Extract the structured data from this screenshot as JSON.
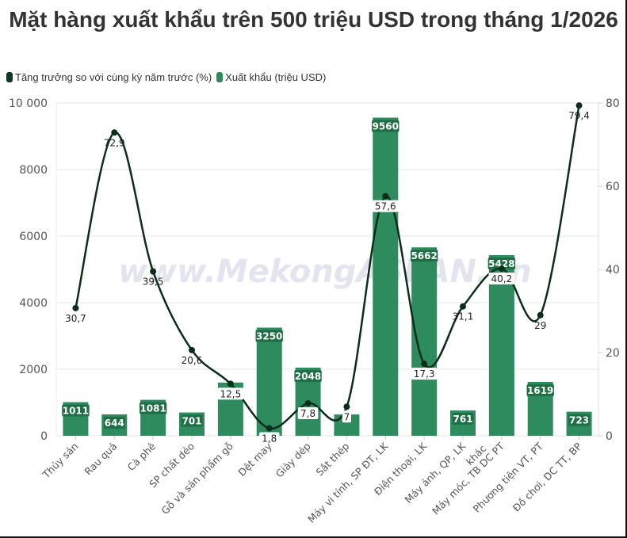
{
  "title": "Mặt hàng xuất khẩu trên 500 triệu USD trong tháng 1/2026",
  "watermark": "www.MekongASEAN.vn",
  "legend": [
    {
      "label": "Tăng trưởng so với cùng kỳ năm trước (%)",
      "color": "#0b3a1e"
    },
    {
      "label": "Xuất khẩu (triệu USD)",
      "color": "#2e8b57"
    }
  ],
  "colors": {
    "bar": "#2e8b5e",
    "line": "#0b2e1a",
    "grid": "#e6e6e6"
  },
  "chart_data": {
    "type": "bar",
    "title": "Mặt hàng xuất khẩu trên 500 triệu USD trong tháng 1/2026",
    "xlabel": "",
    "ylabel": "",
    "categories": [
      "Thủy sản",
      "Rau quả",
      "Cà phê",
      "SP chất dẻo",
      "Gỗ và sản phẩm gỗ",
      "Dệt may",
      "Giày dép",
      "Sắt thép",
      "Máy vi tính, SP ĐT, LK",
      "Điện thoại, LK",
      "Máy ảnh, QP, LK",
      "Máy móc, TB DC PT khác",
      "Phương tiện VT, PT",
      "Đồ chơi, DC TT, BP"
    ],
    "series": [
      {
        "name": "Xuất khẩu (triệu USD)",
        "type": "bar",
        "axis": "left",
        "values": [
          1011,
          644,
          1081,
          701,
          1600,
          3250,
          2048,
          640,
          9560,
          5662,
          761,
          5428,
          1619,
          723
        ],
        "labels": [
          "1011",
          "644",
          "1081",
          "701",
          "",
          "3250",
          "2048",
          "",
          "9560",
          "5662",
          "761",
          "5428",
          "1619",
          "723"
        ]
      },
      {
        "name": "Tăng trưởng so với cùng kỳ năm trước (%)",
        "type": "line",
        "axis": "right",
        "values": [
          30.7,
          72.9,
          39.5,
          20.6,
          12.5,
          1.8,
          7.8,
          7,
          57.6,
          17.3,
          31.1,
          40.2,
          29,
          79.4
        ],
        "labels": [
          "30,7",
          "72,9",
          "39,5",
          "20,6",
          "12,5",
          "1,8",
          "7,8",
          "7",
          "57,6",
          "17,3",
          "31,1",
          "40,2",
          "29",
          "79,4"
        ]
      }
    ],
    "ylim": [
      0,
      10000
    ],
    "y_ticks": [
      "0",
      "2000",
      "4000",
      "6000",
      "8000",
      "10 000"
    ],
    "y2lim": [
      0,
      80
    ],
    "y2_ticks": [
      "0",
      "20",
      "40",
      "60",
      "80"
    ],
    "grid": true,
    "legend_position": "top-left"
  }
}
